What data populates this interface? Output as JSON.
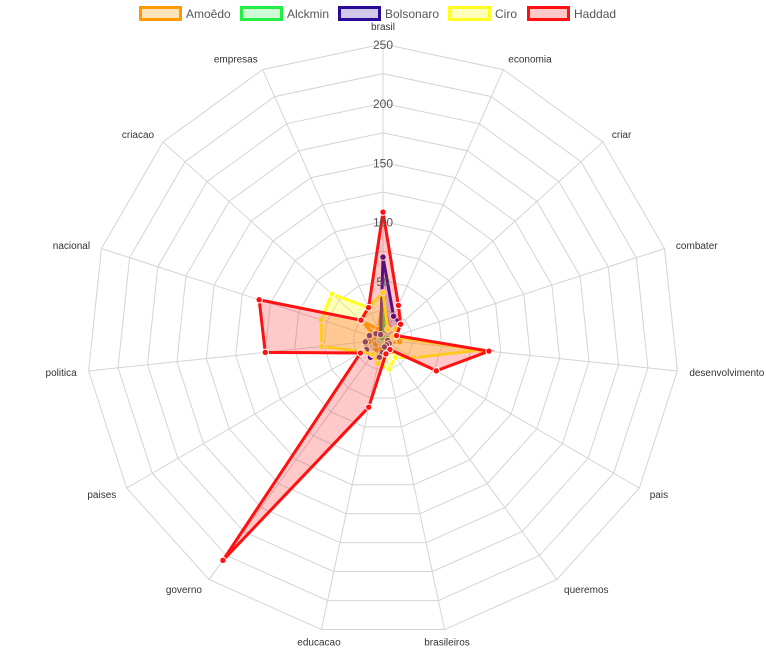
{
  "chart_data": {
    "type": "radar",
    "title": "",
    "categories": [
      "brasil",
      "economia",
      "criar",
      "combater",
      "desenvolvimento",
      "pais",
      "queremos",
      "brasileiros",
      "educacao",
      "governo",
      "paises",
      "politica",
      "nacional",
      "criacao",
      "empresas"
    ],
    "rlim": [
      0,
      250
    ],
    "ticks": [
      50,
      100,
      150,
      200,
      250
    ],
    "grid": true,
    "legend_position": "top-center",
    "series": [
      {
        "name": "Amoêdo",
        "color": "#ff9900",
        "fill": "rgba(255,153,0,0.28)",
        "values": [
          35,
          12,
          15,
          12,
          14,
          5,
          12,
          10,
          8,
          10,
          7,
          12,
          6,
          24,
          10
        ]
      },
      {
        "name": "Alckmin",
        "color": "#22ee44",
        "fill": "rgba(34,238,68,0.22)",
        "values": [
          25,
          3,
          3,
          4,
          6,
          2,
          2,
          2,
          2,
          2,
          3,
          3,
          3,
          3,
          2
        ]
      },
      {
        "name": "Bolsonaro",
        "color": "#2a0a99",
        "fill": "rgba(42,10,153,0.22)",
        "values": [
          70,
          22,
          20,
          10,
          4,
          6,
          5,
          6,
          15,
          18,
          16,
          15,
          12,
          8,
          5
        ]
      },
      {
        "name": "Ciro",
        "color": "#ffff22",
        "fill": "rgba(255,255,34,0.30)",
        "values": [
          40,
          10,
          14,
          9,
          82,
          30,
          18,
          25,
          20,
          15,
          20,
          52,
          55,
          58,
          30
        ]
      },
      {
        "name": "Haddad",
        "color": "#ff1111",
        "fill": "rgba(255,30,30,0.24)",
        "values": [
          108,
          32,
          20,
          12,
          90,
          52,
          10,
          12,
          58,
          230,
          22,
          100,
          110,
          25,
          30
        ]
      }
    ]
  }
}
